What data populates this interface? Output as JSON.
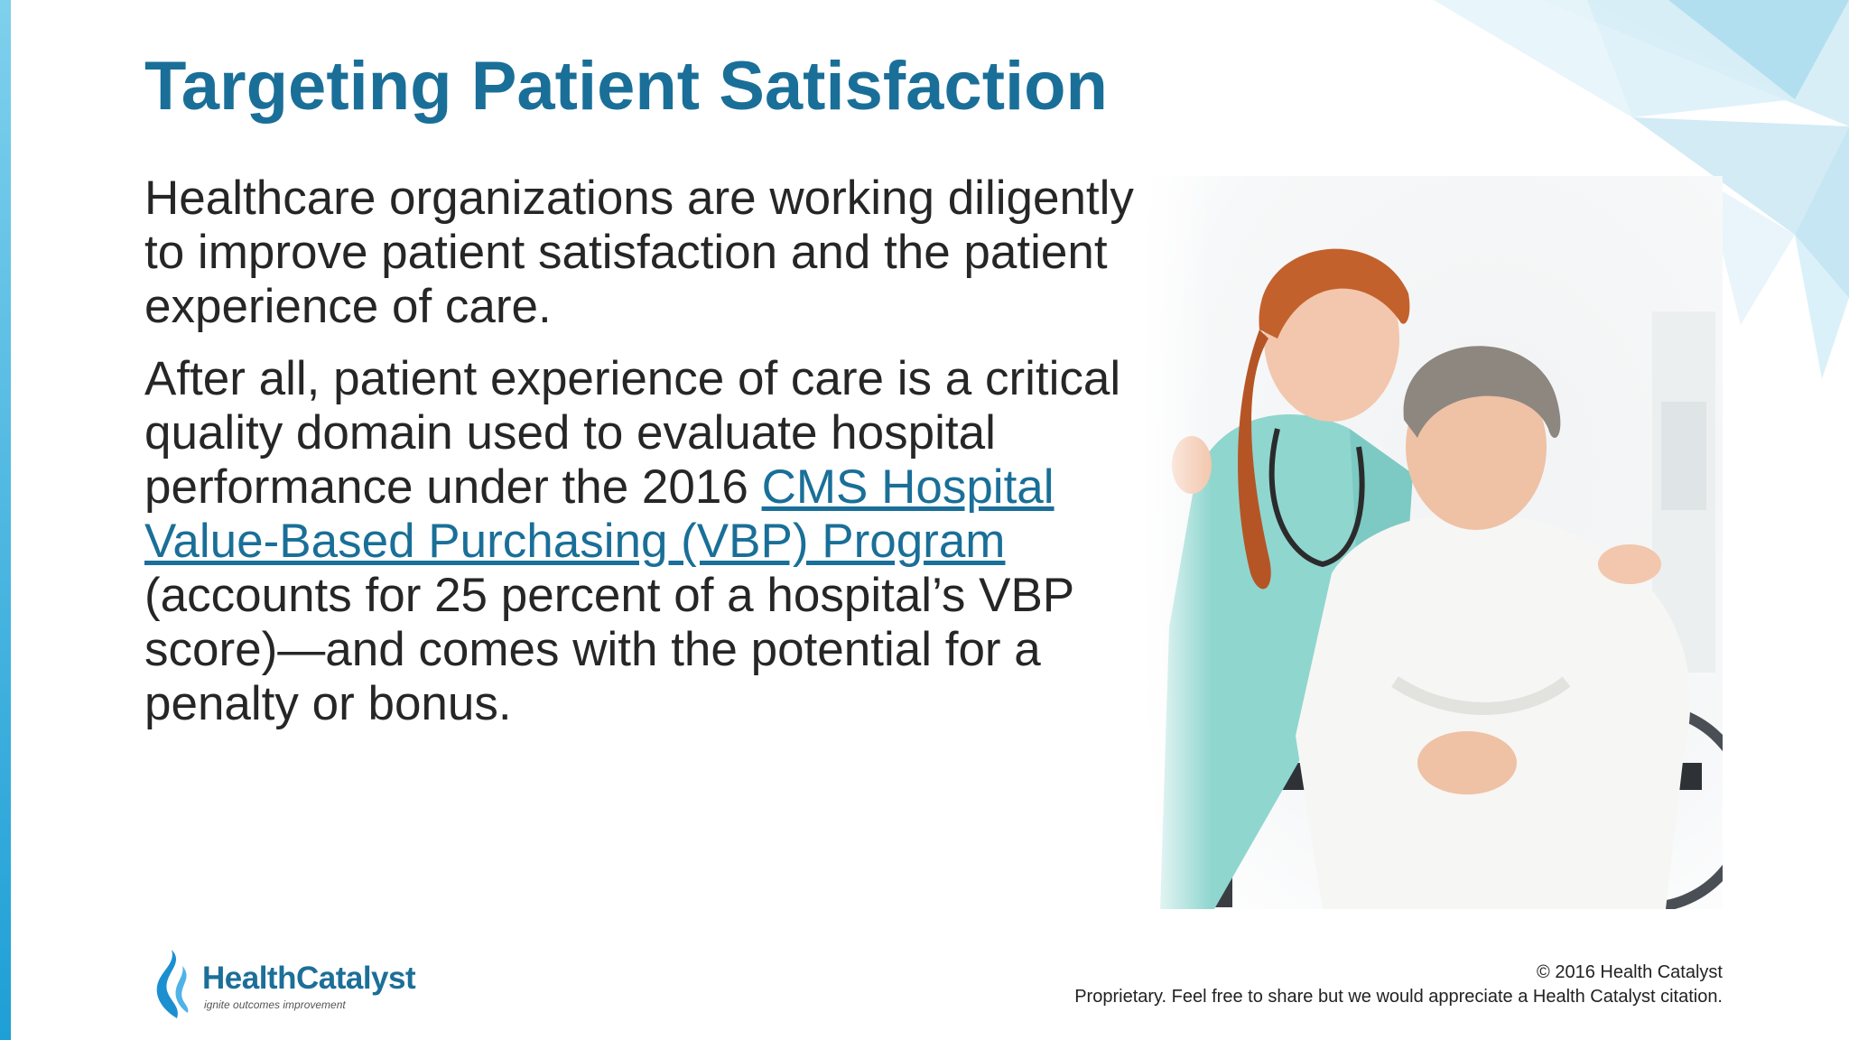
{
  "slide": {
    "title": "Targeting Patient Satisfaction",
    "paragraph1": "Healthcare organizations are working diligently to improve patient satisfaction and the patient experience of care.",
    "paragraph2": {
      "before_link": "After all, patient experience of care is a critical quality domain used to evaluate hospital performance under the 2016 ",
      "link_text": "CMS Hospital Value-Based Purchasing (VBP) Program",
      "after_link": " (accounts for 25 percent of a hospital’s VBP score)—and comes with the potential for a penalty or bonus."
    },
    "image_icon": "nurse-and-patient-photo"
  },
  "branding": {
    "logo_name": "HealthCatalyst",
    "logo_tagline": "ignite outcomes improvement",
    "logo_icon": "flame-logo-icon"
  },
  "footer": {
    "copyright": "© 2016 Health Catalyst",
    "notice": "Proprietary. Feel free to share but we would appreciate a Health Catalyst citation."
  },
  "colors": {
    "title": "#1a6f98",
    "link": "#1a6f98",
    "body_text": "#262626",
    "accent_bar": "#1e9fd6"
  }
}
